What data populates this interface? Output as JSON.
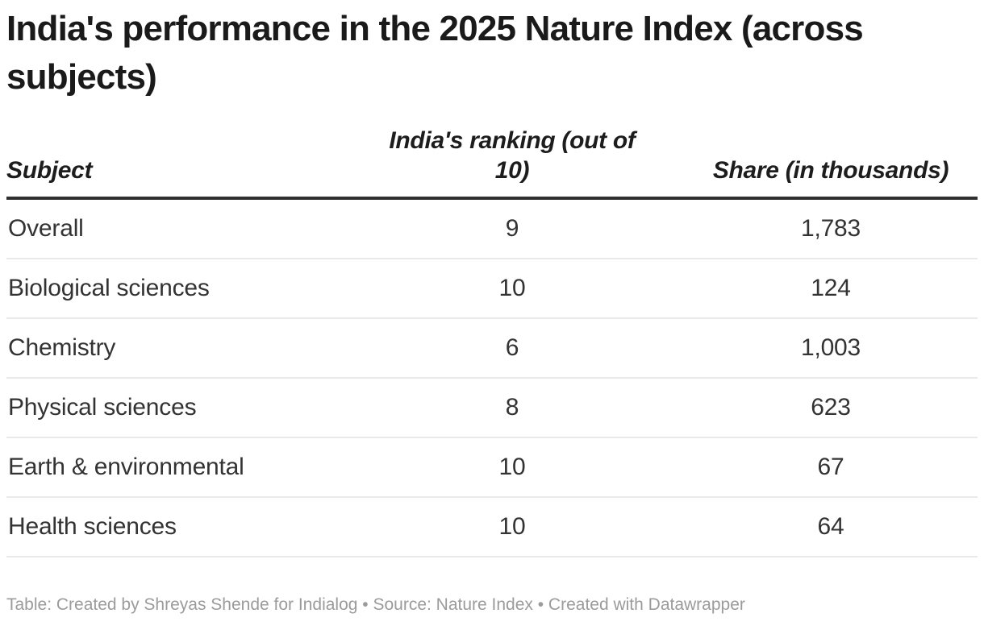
{
  "title": "India's performance in the 2025 Nature Index (across subjects)",
  "table": {
    "columns": [
      {
        "label": "Subject"
      },
      {
        "label": "India's ranking (out of 10)"
      },
      {
        "label": "Share (in thousands)"
      }
    ],
    "rows": [
      {
        "subject": "Overall",
        "ranking": "9",
        "share": "1,783"
      },
      {
        "subject": "Biological sciences",
        "ranking": "10",
        "share": "124"
      },
      {
        "subject": "Chemistry",
        "ranking": "6",
        "share": "1,003"
      },
      {
        "subject": "Physical sciences",
        "ranking": "8",
        "share": "623"
      },
      {
        "subject": "Earth & environmental",
        "ranking": "10",
        "share": "67"
      },
      {
        "subject": "Health sciences",
        "ranking": "10",
        "share": "64"
      }
    ]
  },
  "footer": {
    "credit": "Table: Created by Shreyas Shende for Indialog • Source: Nature Index • Created with Datawrapper"
  },
  "colors": {
    "background": "#ffffff",
    "title_text": "#1a1a1a",
    "body_text": "#333333",
    "header_border": "#2f2f2f",
    "row_divider": "#e9e9e9",
    "footer_text": "#9b9b9b"
  },
  "chart_data": {
    "type": "table",
    "title": "India's performance in the 2025 Nature Index (across subjects)",
    "columns": [
      "Subject",
      "India's ranking (out of 10)",
      "Share (in thousands)"
    ],
    "rows": [
      [
        "Overall",
        9,
        1783
      ],
      [
        "Biological sciences",
        10,
        124
      ],
      [
        "Chemistry",
        6,
        1003
      ],
      [
        "Physical sciences",
        8,
        623
      ],
      [
        "Earth & environmental",
        10,
        67
      ],
      [
        "Health sciences",
        10,
        64
      ]
    ],
    "footnote": "Table: Created by Shreyas Shende for Indialog • Source: Nature Index • Created with Datawrapper",
    "layout": {
      "column_alignments": [
        "left",
        "center",
        "center"
      ],
      "grid": "horizontal-dividers-only"
    }
  }
}
